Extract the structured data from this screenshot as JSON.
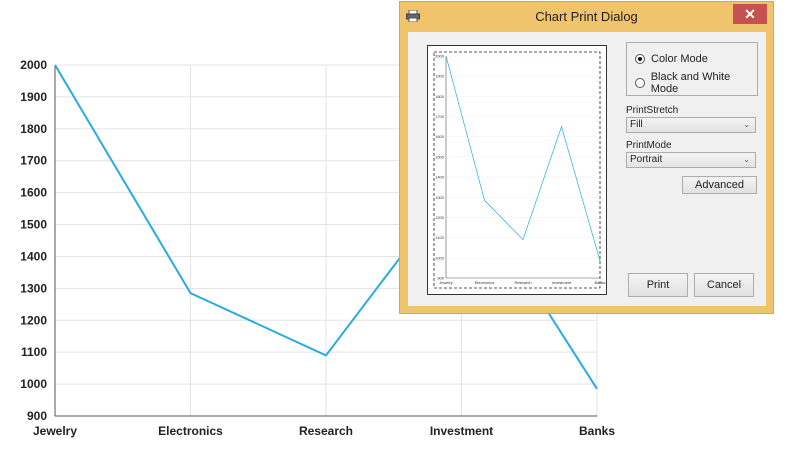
{
  "chart_data": {
    "type": "line",
    "categories": [
      "Jewelry",
      "Electronics",
      "Research",
      "Investment",
      "Banks"
    ],
    "series": [
      {
        "values": [
          2000,
          1285,
          1090,
          1650,
          985
        ]
      }
    ],
    "yticks": [
      900,
      1000,
      1100,
      1200,
      1300,
      1400,
      1500,
      1600,
      1700,
      1800,
      1900,
      2000
    ],
    "ylim": [
      900,
      2000
    ],
    "grid": true,
    "line_color": "#29abe2"
  },
  "dialog": {
    "title": "Chart Print Dialog",
    "close_symbol": "✕",
    "color_mode_label": "Color Mode",
    "bw_mode_label": "Black and White Mode",
    "print_stretch_label": "PrintStretch",
    "print_stretch_value": "Fill",
    "print_mode_label": "PrintMode",
    "print_mode_value": "Portrait",
    "advanced_label": "Advanced",
    "print_label": "Print",
    "cancel_label": "Cancel",
    "accent_color": "#f0c36d",
    "close_color": "#c75050",
    "icons": {
      "app": "printer-icon",
      "dropdown": "chevron-down-icon"
    }
  }
}
